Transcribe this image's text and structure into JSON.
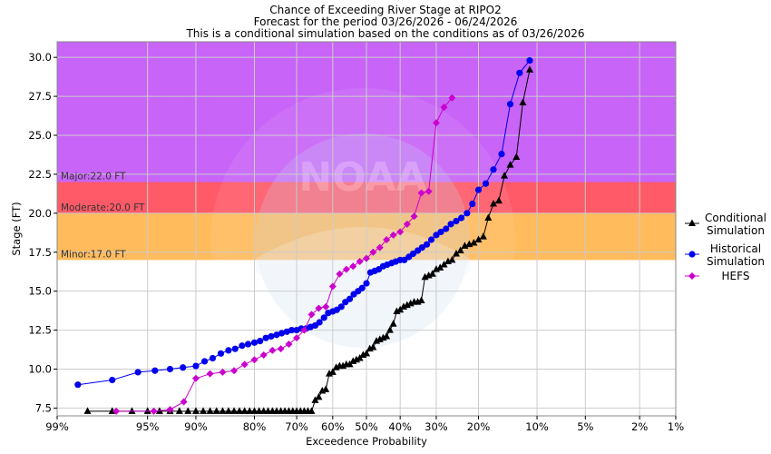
{
  "header": {
    "title": "Chance of Exceeding River Stage at RIPO2",
    "subtitle": "Forecast for the period 03/26/2026 - 06/24/2026",
    "note": "This is a conditional simulation based on the conditions as of 03/26/2026"
  },
  "colors": {
    "major": "#c864f8",
    "moderate": "#ff5a68",
    "minor": "#ffbb5c",
    "conditional": "#000000",
    "historical": "#0000ee",
    "hefs": "#cc00cc",
    "watermark": "#dfe7f4"
  },
  "icons": {
    "watermark": "noaa-logo-watermark"
  },
  "chart_data": {
    "type": "line",
    "xlabel": "Exceedence Probability",
    "ylabel": "Stage (FT)",
    "xscale": "normal-probability",
    "xdirection": "decreasing",
    "xlim": [
      99,
      1
    ],
    "ylim": [
      7,
      31
    ],
    "xticks": [
      99,
      95,
      90,
      80,
      70,
      60,
      50,
      40,
      30,
      20,
      10,
      5,
      2,
      1
    ],
    "xtick_labels": [
      "99%",
      "95%",
      "90%",
      "80%",
      "70%",
      "60%",
      "50%",
      "40%",
      "30%",
      "20%",
      "10%",
      "5%",
      "2%",
      "1%"
    ],
    "yticks": [
      7.5,
      10.0,
      12.5,
      15.0,
      17.5,
      20.0,
      22.5,
      25.0,
      27.5,
      30.0
    ],
    "ytick_labels": [
      "7.5",
      "10.0",
      "12.5",
      "15.0",
      "17.5",
      "20.0",
      "22.5",
      "25.0",
      "27.5",
      "30.0"
    ],
    "grid": true,
    "legend_position": "right",
    "flood_bands": [
      {
        "name": "Major",
        "label": "Major:22.0 FT",
        "from": 22.0,
        "to": 31.0
      },
      {
        "name": "Moderate",
        "label": "Moderate:20.0 FT",
        "from": 20.0,
        "to": 22.0
      },
      {
        "name": "Minor",
        "label": "Minor:17.0 FT",
        "from": 17.0,
        "to": 20.0
      }
    ],
    "series": [
      {
        "name": "Conditional Simulation",
        "legend_lines": [
          "Conditional",
          "Simulation"
        ],
        "marker": "triangle",
        "points": [
          [
            98.2,
            7.3
          ],
          [
            97.2,
            7.3
          ],
          [
            96.1,
            7.3
          ],
          [
            95.0,
            7.3
          ],
          [
            94.0,
            7.3
          ],
          [
            93.0,
            7.3
          ],
          [
            92.0,
            7.3
          ],
          [
            91.0,
            7.3
          ],
          [
            90.0,
            7.3
          ],
          [
            89.0,
            7.3
          ],
          [
            88.0,
            7.3
          ],
          [
            87.0,
            7.3
          ],
          [
            86.0,
            7.3
          ],
          [
            85.0,
            7.3
          ],
          [
            84.0,
            7.3
          ],
          [
            83.0,
            7.3
          ],
          [
            82.0,
            7.3
          ],
          [
            81.0,
            7.3
          ],
          [
            80.0,
            7.3
          ],
          [
            79.0,
            7.3
          ],
          [
            78.0,
            7.3
          ],
          [
            77.0,
            7.3
          ],
          [
            76.0,
            7.3
          ],
          [
            75.0,
            7.3
          ],
          [
            74.0,
            7.3
          ],
          [
            73.0,
            7.3
          ],
          [
            72.0,
            7.3
          ],
          [
            71.0,
            7.3
          ],
          [
            70.0,
            7.3
          ],
          [
            69.0,
            7.3
          ],
          [
            68.0,
            7.3
          ],
          [
            67.0,
            7.3
          ],
          [
            66.0,
            7.3
          ],
          [
            65.0,
            8.0
          ],
          [
            64.0,
            8.2
          ],
          [
            63.0,
            8.6
          ],
          [
            62.0,
            8.7
          ],
          [
            61.0,
            9.7
          ],
          [
            60.0,
            9.8
          ],
          [
            59.0,
            10.1
          ],
          [
            58.0,
            10.2
          ],
          [
            57.0,
            10.2
          ],
          [
            56.0,
            10.3
          ],
          [
            55.0,
            10.3
          ],
          [
            54.0,
            10.5
          ],
          [
            53.0,
            10.6
          ],
          [
            52.0,
            10.7
          ],
          [
            51.0,
            10.9
          ],
          [
            50.0,
            11.0
          ],
          [
            49.0,
            11.3
          ],
          [
            48.0,
            11.4
          ],
          [
            47.0,
            11.8
          ],
          [
            46.0,
            11.9
          ],
          [
            45.0,
            12.0
          ],
          [
            44.0,
            12.1
          ],
          [
            43.0,
            12.5
          ],
          [
            42.0,
            12.9
          ],
          [
            41.0,
            13.7
          ],
          [
            40.0,
            13.8
          ],
          [
            39.0,
            14.0
          ],
          [
            38.0,
            14.1
          ],
          [
            37.0,
            14.2
          ],
          [
            36.0,
            14.3
          ],
          [
            35.0,
            14.3
          ],
          [
            34.0,
            14.4
          ],
          [
            33.0,
            15.9
          ],
          [
            32.0,
            16.0
          ],
          [
            31.0,
            16.1
          ],
          [
            30.0,
            16.4
          ],
          [
            29.0,
            16.5
          ],
          [
            28.0,
            16.7
          ],
          [
            27.0,
            16.9
          ],
          [
            26.0,
            17.0
          ],
          [
            25.0,
            17.4
          ],
          [
            24.0,
            17.6
          ],
          [
            23.0,
            17.9
          ],
          [
            22.0,
            18.0
          ],
          [
            21.0,
            18.1
          ],
          [
            20.0,
            18.3
          ],
          [
            19.0,
            18.5
          ],
          [
            18.0,
            19.7
          ],
          [
            17.0,
            20.6
          ],
          [
            16.0,
            20.8
          ],
          [
            15.0,
            22.4
          ],
          [
            14.0,
            23.1
          ],
          [
            13.0,
            23.6
          ],
          [
            12.0,
            27.1
          ],
          [
            11.0,
            29.2
          ]
        ]
      },
      {
        "name": "Historical Simulation",
        "legend_lines": [
          "Historical",
          "Simulation"
        ],
        "marker": "circle",
        "points": [
          [
            98.5,
            9.0
          ],
          [
            97.2,
            9.3
          ],
          [
            95.7,
            9.8
          ],
          [
            94.4,
            9.9
          ],
          [
            93.0,
            10.0
          ],
          [
            91.6,
            10.1
          ],
          [
            90.0,
            10.2
          ],
          [
            88.8,
            10.5
          ],
          [
            87.6,
            10.7
          ],
          [
            86.3,
            11.0
          ],
          [
            85.0,
            11.2
          ],
          [
            83.8,
            11.3
          ],
          [
            82.5,
            11.5
          ],
          [
            81.3,
            11.6
          ],
          [
            80.0,
            11.7
          ],
          [
            78.8,
            11.8
          ],
          [
            77.5,
            12.0
          ],
          [
            76.3,
            12.1
          ],
          [
            75.0,
            12.2
          ],
          [
            73.8,
            12.3
          ],
          [
            72.5,
            12.4
          ],
          [
            71.3,
            12.5
          ],
          [
            70.0,
            12.5
          ],
          [
            68.8,
            12.6
          ],
          [
            67.5,
            12.6
          ],
          [
            66.3,
            12.7
          ],
          [
            65.0,
            12.8
          ],
          [
            63.8,
            13.0
          ],
          [
            62.5,
            13.3
          ],
          [
            61.3,
            13.6
          ],
          [
            60.0,
            13.7
          ],
          [
            58.8,
            13.8
          ],
          [
            57.5,
            14.0
          ],
          [
            56.3,
            14.3
          ],
          [
            55.0,
            14.5
          ],
          [
            53.8,
            14.8
          ],
          [
            52.5,
            15.0
          ],
          [
            51.3,
            15.2
          ],
          [
            50.0,
            15.5
          ],
          [
            48.8,
            16.2
          ],
          [
            47.5,
            16.3
          ],
          [
            46.3,
            16.4
          ],
          [
            45.0,
            16.6
          ],
          [
            43.8,
            16.7
          ],
          [
            42.5,
            16.8
          ],
          [
            41.3,
            16.9
          ],
          [
            40.0,
            17.0
          ],
          [
            38.8,
            17.0
          ],
          [
            37.5,
            17.2
          ],
          [
            36.3,
            17.4
          ],
          [
            35.0,
            17.6
          ],
          [
            33.8,
            17.8
          ],
          [
            32.5,
            18.0
          ],
          [
            31.3,
            18.3
          ],
          [
            30.0,
            18.6
          ],
          [
            28.8,
            18.8
          ],
          [
            27.5,
            19.0
          ],
          [
            26.3,
            19.3
          ],
          [
            25.0,
            19.5
          ],
          [
            23.8,
            19.7
          ],
          [
            22.5,
            20.0
          ],
          [
            21.3,
            20.6
          ],
          [
            20.0,
            21.5
          ],
          [
            18.5,
            21.9
          ],
          [
            17.0,
            22.8
          ],
          [
            15.5,
            23.8
          ],
          [
            14.0,
            27.0
          ],
          [
            12.5,
            29.0
          ],
          [
            11.0,
            29.8
          ]
        ]
      },
      {
        "name": "HEFS",
        "legend_lines": [
          "HEFS"
        ],
        "marker": "diamond",
        "points": [
          [
            97.0,
            7.3
          ],
          [
            94.5,
            7.3
          ],
          [
            93.0,
            7.4
          ],
          [
            91.5,
            7.9
          ],
          [
            90.0,
            9.4
          ],
          [
            88.0,
            9.7
          ],
          [
            86.0,
            9.8
          ],
          [
            84.0,
            9.9
          ],
          [
            82.0,
            10.3
          ],
          [
            80.0,
            10.6
          ],
          [
            78.0,
            10.9
          ],
          [
            76.0,
            11.2
          ],
          [
            74.0,
            11.3
          ],
          [
            72.0,
            11.6
          ],
          [
            70.0,
            12.0
          ],
          [
            68.0,
            12.5
          ],
          [
            66.0,
            13.5
          ],
          [
            64.0,
            13.9
          ],
          [
            62.0,
            14.0
          ],
          [
            60.0,
            15.3
          ],
          [
            58.0,
            16.1
          ],
          [
            56.0,
            16.4
          ],
          [
            54.0,
            16.6
          ],
          [
            52.0,
            16.9
          ],
          [
            50.0,
            17.1
          ],
          [
            48.0,
            17.5
          ],
          [
            46.0,
            17.8
          ],
          [
            44.0,
            18.3
          ],
          [
            42.0,
            18.6
          ],
          [
            40.0,
            18.8
          ],
          [
            38.0,
            19.3
          ],
          [
            36.0,
            19.8
          ],
          [
            34.0,
            21.3
          ],
          [
            32.0,
            21.4
          ],
          [
            30.0,
            25.8
          ],
          [
            28.0,
            26.8
          ],
          [
            26.0,
            27.4
          ]
        ]
      }
    ]
  }
}
